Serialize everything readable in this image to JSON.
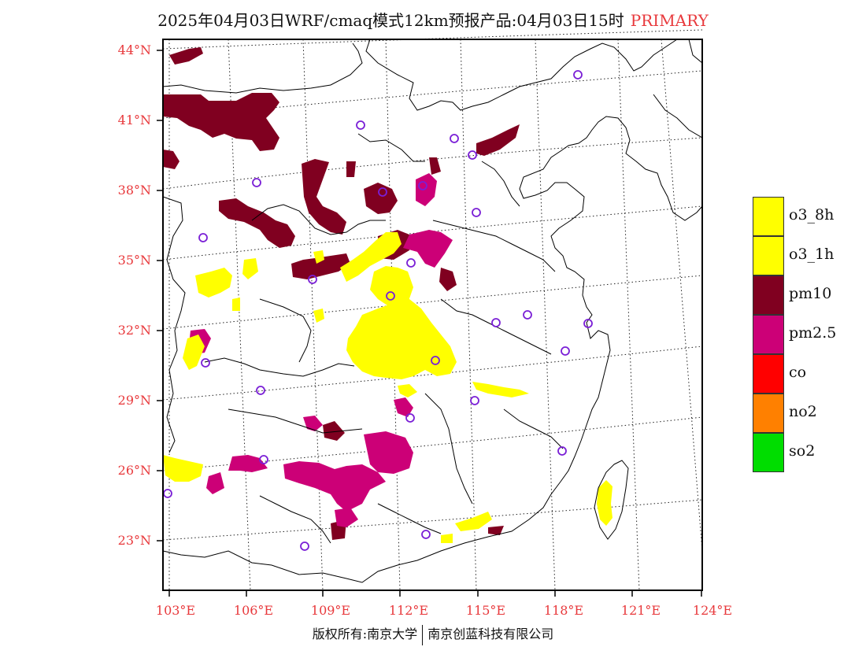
{
  "title": {
    "main": "2025年04月03日WRF/cmaq模式12km预报产品:04月03日15时",
    "label": "PRIMARY"
  },
  "latitude_labels": [
    "44°N",
    "41°N",
    "38°N",
    "35°N",
    "32°N",
    "29°N",
    "26°N",
    "23°N"
  ],
  "longitude_labels": [
    "103°E",
    "106°E",
    "109°E",
    "112°E",
    "115°E",
    "118°E",
    "121°E",
    "124°E"
  ],
  "legend": [
    {
      "key": "o3_8h",
      "label": "o3_8h",
      "color": "#ffff00"
    },
    {
      "key": "o3_1h",
      "label": "o3_1h",
      "color": "#ffff00"
    },
    {
      "key": "pm10",
      "label": "pm10",
      "color": "#800020"
    },
    {
      "key": "pm25",
      "label": "pm2.5",
      "color": "#cc0077"
    },
    {
      "key": "co",
      "label": "co",
      "color": "#ff0000"
    },
    {
      "key": "no2",
      "label": "no2",
      "color": "#ff8000"
    },
    {
      "key": "so2",
      "label": "so2",
      "color": "#00dd00"
    }
  ],
  "footer": {
    "left": "版权所有:南京大学",
    "right": "南京创蓝科技有限公司"
  },
  "colors": {
    "axis_label": "#e8393c",
    "station_marker": "#7a1fd6",
    "coast": "#000000"
  }
}
